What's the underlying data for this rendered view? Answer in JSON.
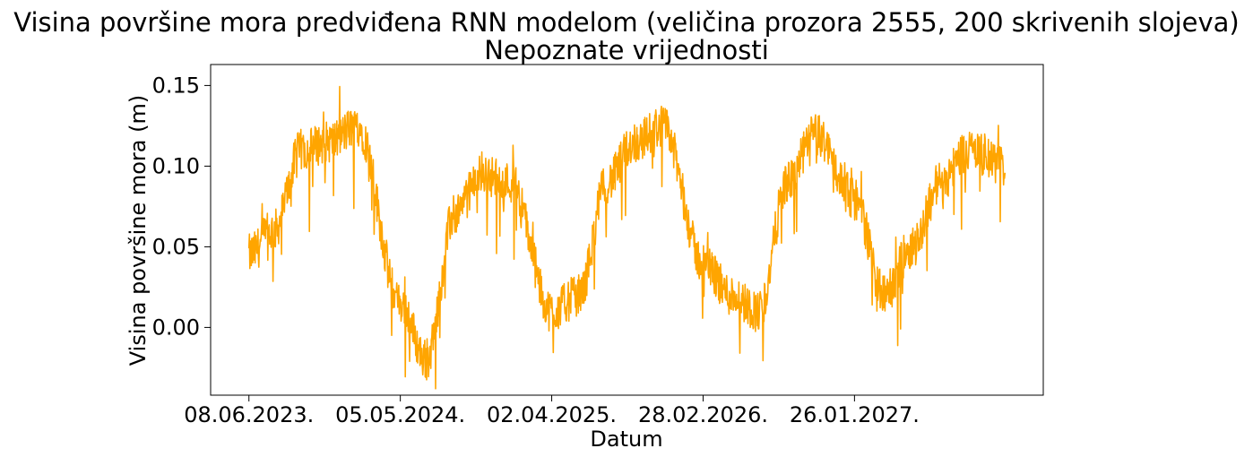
{
  "chart_data": {
    "type": "line",
    "title": "Visina površine mora predviđena RNN modelom (veličina prozora 2555, 200 skrivenih slojeva)",
    "subtitle": "Nepoznate vrijednosti",
    "xlabel": "Datum",
    "ylabel": "Visina površine mora (m)",
    "x_tick_labels": [
      "08.06.2023.",
      "05.05.2024.",
      "02.04.2025.",
      "28.02.2026.",
      "26.01.2027."
    ],
    "y_ticks": [
      0.0,
      0.05,
      0.1,
      0.15
    ],
    "y_tick_labels": [
      "0.00",
      "0.05",
      "0.10",
      "0.15"
    ],
    "ylim": [
      -0.042,
      0.163
    ],
    "grid": false,
    "line_color": "#FFA500",
    "series": [
      {
        "x": [
          "08.06.2023.",
          "2023-08-01",
          "2023-10-01",
          "2023-12-01",
          "2024-02-01",
          "05.05.2024.",
          "2024-07-01",
          "2024-09-01",
          "2024-11-01",
          "2025-01-01",
          "02.04.2025.",
          "2025-06-01",
          "2025-08-01",
          "2025-10-01",
          "2025-12-01",
          "28.02.2026.",
          "2026-05-01",
          "2026-07-01",
          "2026-09-01",
          "2026-11-01",
          "26.01.2027.",
          "2027-04-01",
          "2027-06-01",
          "2027-08-01",
          "2027-10-01",
          "2027-12-22"
        ],
        "y": [
          0.045,
          0.06,
          0.11,
          0.115,
          0.125,
          0.015,
          -0.02,
          0.07,
          0.095,
          0.09,
          0.01,
          0.02,
          0.09,
          0.115,
          0.125,
          0.04,
          0.02,
          0.01,
          0.09,
          0.12,
          0.08,
          0.02,
          0.05,
          0.09,
          0.11,
          0.1
        ]
      }
    ]
  }
}
